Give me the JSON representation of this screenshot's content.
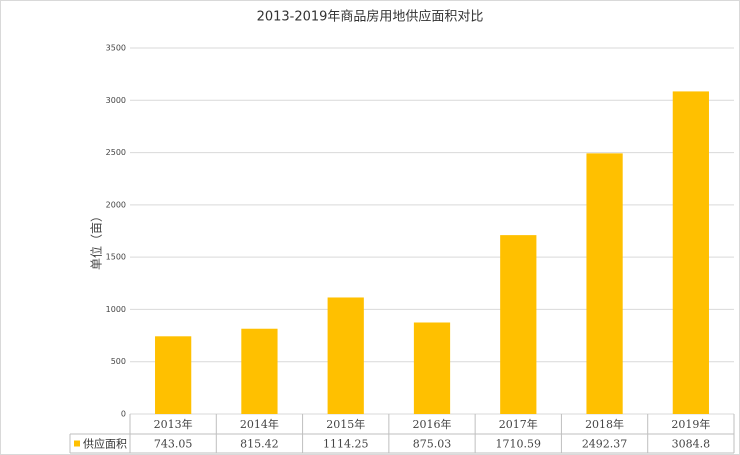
{
  "chart_data": {
    "type": "bar",
    "title": "2013-2019年商品房用地供应面积对比",
    "y_label": "单位（亩）",
    "categories": [
      "2013年",
      "2014年",
      "2015年",
      "2016年",
      "2017年",
      "2018年",
      "2019年"
    ],
    "series": [
      {
        "name": "供应面积",
        "color": "#ffc000",
        "values": [
          743.05,
          815.42,
          1114.25,
          875.03,
          1710.59,
          2492.37,
          3084.8
        ]
      }
    ],
    "ylim": [
      0,
      3500
    ],
    "yticks": [
      0,
      500,
      1000,
      1500,
      2000,
      2500,
      3000,
      3500
    ],
    "grid": true
  }
}
